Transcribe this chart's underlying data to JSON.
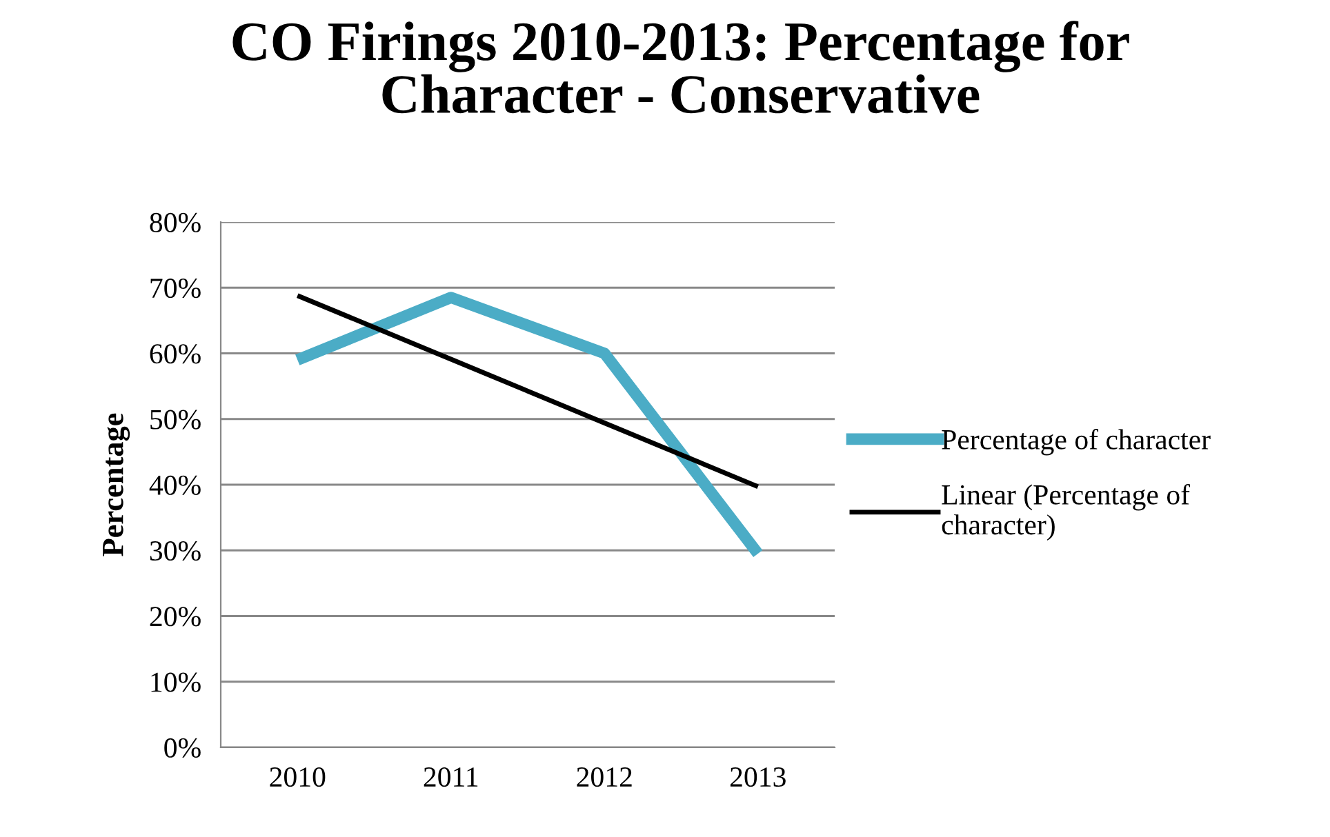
{
  "chart_data": {
    "type": "line",
    "title": "CO Firings 2010-2013: Percentage for Character - Conservative",
    "ylabel": "Percentage",
    "categories": [
      "2010",
      "2011",
      "2012",
      "2013"
    ],
    "series": [
      {
        "name": "Percentage of character",
        "color": "#4bacc6",
        "values": [
          59,
          68.5,
          60,
          29.5
        ]
      },
      {
        "name": "Linear (Percentage of character)",
        "color": "#000000",
        "values": [
          68.8,
          59.1,
          49.4,
          39.7
        ]
      }
    ],
    "ylim": [
      0,
      80
    ],
    "yticks": [
      {
        "value": 0,
        "label": "0%"
      },
      {
        "value": 10,
        "label": "10%"
      },
      {
        "value": 20,
        "label": "20%"
      },
      {
        "value": 30,
        "label": "30%"
      },
      {
        "value": 40,
        "label": "40%"
      },
      {
        "value": 50,
        "label": "50%"
      },
      {
        "value": 60,
        "label": "60%"
      },
      {
        "value": 70,
        "label": "70%"
      },
      {
        "value": 80,
        "label": "80%"
      }
    ],
    "grid": "y",
    "legend": "right",
    "marker": "none",
    "line_style": "solid"
  }
}
